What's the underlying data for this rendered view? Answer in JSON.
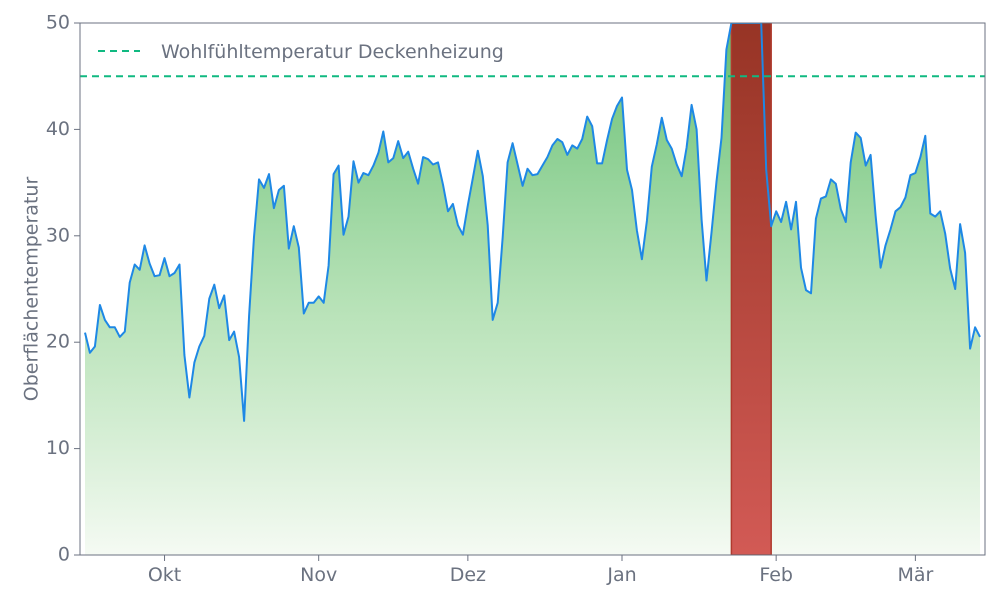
{
  "chart_data": {
    "type": "area",
    "title": "",
    "xlabel": "",
    "ylabel": "Oberflächentemperatur",
    "ylim": [
      0,
      50
    ],
    "xlim": [
      "2024-09-14",
      "2025-03-15"
    ],
    "y_ticks": [
      0,
      10,
      20,
      30,
      40,
      50
    ],
    "x_ticks": [
      {
        "date": "2024-10-01",
        "label": "Okt"
      },
      {
        "date": "2024-11-01",
        "label": "Nov"
      },
      {
        "date": "2024-12-01",
        "label": "Dez"
      },
      {
        "date": "2025-01-01",
        "label": "Jan"
      },
      {
        "date": "2025-02-01",
        "label": "Feb"
      },
      {
        "date": "2025-03-01",
        "label": "Mär"
      }
    ],
    "grid": false,
    "legend": {
      "position": "top-left",
      "entries": [
        "Wohlfühltemperatur Deckenheizung"
      ]
    },
    "reference_line": {
      "name": "Wohlfühltemperatur Deckenheizung",
      "value": 45,
      "color": "#10b981",
      "style": "dashed"
    },
    "highlight_band": {
      "start": "2025-01-23",
      "end": "2025-01-31",
      "color": "#c0392b"
    },
    "series": [
      {
        "name": "",
        "color": "#1e88e5",
        "fill": "green-gradient",
        "x": [
          "2024-09-15",
          "2024-09-16",
          "2024-09-17",
          "2024-09-18",
          "2024-09-19",
          "2024-09-20",
          "2024-09-21",
          "2024-09-22",
          "2024-09-23",
          "2024-09-24",
          "2024-09-25",
          "2024-09-26",
          "2024-09-27",
          "2024-09-28",
          "2024-09-29",
          "2024-09-30",
          "2024-10-01",
          "2024-10-02",
          "2024-10-03",
          "2024-10-04",
          "2024-10-05",
          "2024-10-06",
          "2024-10-07",
          "2024-10-08",
          "2024-10-09",
          "2024-10-10",
          "2024-10-11",
          "2024-10-12",
          "2024-10-13",
          "2024-10-14",
          "2024-10-15",
          "2024-10-16",
          "2024-10-17",
          "2024-10-18",
          "2024-10-19",
          "2024-10-20",
          "2024-10-21",
          "2024-10-22",
          "2024-10-23",
          "2024-10-24",
          "2024-10-25",
          "2024-10-26",
          "2024-10-27",
          "2024-10-28",
          "2024-10-29",
          "2024-10-30",
          "2024-10-31",
          "2024-11-01",
          "2024-11-02",
          "2024-11-03",
          "2024-11-04",
          "2024-11-05",
          "2024-11-06",
          "2024-11-07",
          "2024-11-08",
          "2024-11-09",
          "2024-11-10",
          "2024-11-11",
          "2024-11-12",
          "2024-11-13",
          "2024-11-14",
          "2024-11-15",
          "2024-11-16",
          "2024-11-17",
          "2024-11-18",
          "2024-11-19",
          "2024-11-20",
          "2024-11-21",
          "2024-11-22",
          "2024-11-23",
          "2024-11-24",
          "2024-11-25",
          "2024-11-26",
          "2024-11-27",
          "2024-11-28",
          "2024-11-29",
          "2024-11-30",
          "2024-12-01",
          "2024-12-02",
          "2024-12-03",
          "2024-12-04",
          "2024-12-05",
          "2024-12-06",
          "2024-12-07",
          "2024-12-08",
          "2024-12-09",
          "2024-12-10",
          "2024-12-11",
          "2024-12-12",
          "2024-12-13",
          "2024-12-14",
          "2024-12-15",
          "2024-12-16",
          "2024-12-17",
          "2024-12-18",
          "2024-12-19",
          "2024-12-20",
          "2024-12-21",
          "2024-12-22",
          "2024-12-23",
          "2024-12-24",
          "2024-12-25",
          "2024-12-26",
          "2024-12-27",
          "2024-12-28",
          "2024-12-29",
          "2024-12-30",
          "2024-12-31",
          "2025-01-01",
          "2025-01-02",
          "2025-01-03",
          "2025-01-04",
          "2025-01-05",
          "2025-01-06",
          "2025-01-07",
          "2025-01-08",
          "2025-01-09",
          "2025-01-10",
          "2025-01-11",
          "2025-01-12",
          "2025-01-13",
          "2025-01-14",
          "2025-01-15",
          "2025-01-16",
          "2025-01-17",
          "2025-01-18",
          "2025-01-19",
          "2025-01-20",
          "2025-01-21",
          "2025-01-22",
          "2025-01-23",
          "2025-01-24",
          "2025-01-25",
          "2025-01-26",
          "2025-01-27",
          "2025-01-28",
          "2025-01-29",
          "2025-01-30",
          "2025-01-31",
          "2025-02-01",
          "2025-02-02",
          "2025-02-03",
          "2025-02-04",
          "2025-02-05",
          "2025-02-06",
          "2025-02-07",
          "2025-02-08",
          "2025-02-09",
          "2025-02-10",
          "2025-02-11",
          "2025-02-12",
          "2025-02-13",
          "2025-02-14",
          "2025-02-15",
          "2025-02-16",
          "2025-02-17",
          "2025-02-18",
          "2025-02-19",
          "2025-02-20",
          "2025-02-21",
          "2025-02-22",
          "2025-02-23",
          "2025-02-24",
          "2025-02-25",
          "2025-02-26",
          "2025-02-27",
          "2025-02-28",
          "2025-03-01",
          "2025-03-02",
          "2025-03-03",
          "2025-03-04",
          "2025-03-05",
          "2025-03-06",
          "2025-03-07",
          "2025-03-08",
          "2025-03-09",
          "2025-03-10",
          "2025-03-11",
          "2025-03-12",
          "2025-03-13",
          "2025-03-14"
        ],
        "values": [
          20.9,
          19.0,
          19.6,
          23.5,
          22.1,
          21.4,
          21.4,
          20.5,
          21.0,
          25.6,
          27.3,
          26.8,
          29.1,
          27.4,
          26.2,
          26.3,
          27.9,
          26.2,
          26.5,
          27.3,
          18.8,
          14.8,
          18.1,
          19.6,
          20.6,
          24.1,
          25.4,
          23.2,
          24.4,
          20.2,
          21.0,
          18.6,
          12.6,
          22.5,
          29.9,
          35.3,
          34.5,
          35.8,
          32.6,
          34.3,
          34.7,
          28.8,
          30.9,
          28.9,
          22.7,
          23.7,
          23.7,
          24.3,
          23.7,
          27.2,
          35.8,
          36.6,
          30.1,
          31.8,
          37.0,
          35.0,
          35.9,
          35.7,
          36.6,
          37.8,
          39.8,
          36.9,
          37.3,
          38.9,
          37.3,
          37.9,
          36.3,
          34.9,
          37.4,
          37.2,
          36.7,
          36.9,
          34.8,
          32.3,
          33.0,
          31.0,
          30.1,
          32.9,
          35.4,
          38.0,
          35.6,
          31.0,
          22.1,
          23.7,
          29.9,
          36.9,
          38.7,
          36.7,
          34.7,
          36.3,
          35.7,
          35.8,
          36.6,
          37.4,
          38.5,
          39.1,
          38.8,
          37.6,
          38.5,
          38.2,
          39.1,
          41.2,
          40.3,
          36.8,
          36.8,
          39.0,
          41.0,
          42.2,
          43.0,
          36.2,
          34.3,
          30.5,
          27.8,
          31.4,
          36.5,
          38.6,
          41.1,
          39.0,
          38.2,
          36.7,
          35.6,
          38.3,
          42.3,
          40.0,
          31.5,
          25.8,
          30.3,
          35.1,
          39.2,
          47.5,
          50.0,
          50.0,
          50.0,
          50.0,
          50.0,
          50.0,
          50.0,
          36.2,
          30.9,
          32.3,
          31.3,
          33.2,
          30.6,
          33.2,
          27.0,
          24.9,
          24.6,
          31.6,
          33.5,
          33.7,
          35.3,
          34.9,
          32.5,
          31.3,
          36.9,
          39.7,
          39.2,
          36.6,
          37.6,
          31.9,
          27.0,
          29.1,
          30.6,
          32.3,
          32.7,
          33.6,
          35.7,
          35.9,
          37.4,
          39.4,
          32.1,
          31.8,
          32.3,
          30.2,
          26.9,
          25.0,
          31.1,
          28.4,
          19.4,
          21.4,
          20.5
        ]
      }
    ]
  }
}
